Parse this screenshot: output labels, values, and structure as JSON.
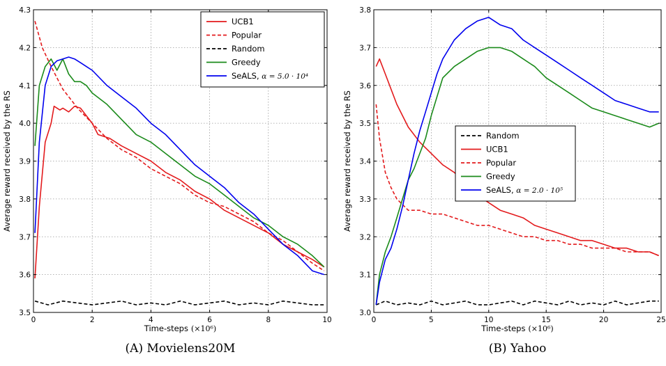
{
  "chart_data": [
    {
      "type": "line",
      "caption": "(A) Movielens20M",
      "xlabel": "Time-steps",
      "xlabel_unit": "(×10⁶)",
      "ylabel": "Average reward received by the RS",
      "xlim": [
        0,
        10
      ],
      "ylim": [
        3.5,
        4.3
      ],
      "xticks": [
        0,
        2,
        4,
        6,
        8,
        10
      ],
      "xtick_labels": [
        "0",
        "2",
        "4",
        "6",
        "8",
        "10"
      ],
      "yticks": [
        3.5,
        3.6,
        3.7,
        3.8,
        3.9,
        4.0,
        4.1,
        4.2,
        4.3
      ],
      "ytick_labels": [
        "3.5",
        "3.6",
        "3.7",
        "3.8",
        "3.9",
        "4.0",
        "4.1",
        "4.2",
        "4.3"
      ],
      "grid": true,
      "legend_position": "top-right",
      "legend_order": [
        0,
        1,
        2,
        3,
        4
      ],
      "series": [
        {
          "name": "UCB1",
          "color": "#e31a1c",
          "dash": "solid",
          "x": [
            0.05,
            0.2,
            0.4,
            0.6,
            0.7,
            0.9,
            1.0,
            1.2,
            1.4,
            1.6,
            1.8,
            2.0,
            2.2,
            2.6,
            3.0,
            3.5,
            4.0,
            4.5,
            5.0,
            5.5,
            6.0,
            6.5,
            7.0,
            7.5,
            8.0,
            8.5,
            9.0,
            9.5,
            9.9
          ],
          "y": [
            3.59,
            3.78,
            3.95,
            4.0,
            4.045,
            4.035,
            4.04,
            4.03,
            4.045,
            4.04,
            4.02,
            4.0,
            3.97,
            3.96,
            3.94,
            3.92,
            3.9,
            3.87,
            3.85,
            3.82,
            3.8,
            3.77,
            3.75,
            3.73,
            3.71,
            3.68,
            3.66,
            3.64,
            3.62
          ]
        },
        {
          "name": "Popular",
          "color": "#e31a1c",
          "dash": "dashed",
          "x": [
            0.05,
            0.3,
            0.6,
            1.0,
            1.5,
            2.0,
            2.5,
            3.0,
            3.5,
            4.0,
            4.5,
            5.0,
            5.5,
            6.0,
            6.5,
            7.0,
            7.5,
            8.0,
            8.5,
            9.0,
            9.5,
            9.9
          ],
          "y": [
            4.27,
            4.2,
            4.15,
            4.09,
            4.04,
            4.0,
            3.96,
            3.93,
            3.91,
            3.88,
            3.86,
            3.84,
            3.81,
            3.79,
            3.78,
            3.76,
            3.74,
            3.71,
            3.69,
            3.66,
            3.63,
            3.61
          ]
        },
        {
          "name": "Random",
          "color": "#000000",
          "dash": "dashed",
          "x": [
            0.05,
            0.5,
            1.0,
            1.5,
            2.0,
            2.5,
            3.0,
            3.5,
            4.0,
            4.5,
            5.0,
            5.5,
            6.0,
            6.5,
            7.0,
            7.5,
            8.0,
            8.5,
            9.0,
            9.5,
            9.9
          ],
          "y": [
            3.53,
            3.52,
            3.53,
            3.525,
            3.52,
            3.525,
            3.53,
            3.52,
            3.525,
            3.52,
            3.53,
            3.52,
            3.525,
            3.53,
            3.52,
            3.525,
            3.52,
            3.53,
            3.525,
            3.52,
            3.52
          ]
        },
        {
          "name": "Greedy",
          "color": "#1a8a1a",
          "dash": "solid",
          "x": [
            0.05,
            0.2,
            0.4,
            0.6,
            0.8,
            1.0,
            1.2,
            1.4,
            1.6,
            1.8,
            2.0,
            2.5,
            3.0,
            3.5,
            4.0,
            4.5,
            5.0,
            5.5,
            6.0,
            6.5,
            7.0,
            7.5,
            8.0,
            8.5,
            9.0,
            9.5,
            9.9
          ],
          "y": [
            3.94,
            4.1,
            4.15,
            4.17,
            4.14,
            4.17,
            4.13,
            4.11,
            4.11,
            4.1,
            4.08,
            4.05,
            4.01,
            3.97,
            3.95,
            3.92,
            3.89,
            3.86,
            3.84,
            3.81,
            3.78,
            3.75,
            3.73,
            3.7,
            3.68,
            3.65,
            3.62
          ]
        },
        {
          "name": "SeALS",
          "color": "#0000ee",
          "dash": "solid",
          "x": [
            0.05,
            0.2,
            0.4,
            0.6,
            0.8,
            1.0,
            1.2,
            1.4,
            1.6,
            1.8,
            2.0,
            2.5,
            3.0,
            3.5,
            4.0,
            4.5,
            5.0,
            5.5,
            6.0,
            6.5,
            7.0,
            7.5,
            8.0,
            8.5,
            9.0,
            9.5,
            9.9
          ],
          "y": [
            3.71,
            3.95,
            4.1,
            4.15,
            4.165,
            4.17,
            4.175,
            4.17,
            4.16,
            4.15,
            4.14,
            4.1,
            4.07,
            4.04,
            4.0,
            3.97,
            3.93,
            3.89,
            3.86,
            3.83,
            3.79,
            3.76,
            3.72,
            3.68,
            3.65,
            3.61,
            3.6
          ]
        }
      ]
    },
    {
      "type": "line",
      "caption": "(B) Yahoo",
      "xlabel": "Time-steps",
      "xlabel_unit": "(×10⁶)",
      "ylabel": "Average reward received by the RS",
      "xlim": [
        0,
        25
      ],
      "ylim": [
        3.0,
        3.8
      ],
      "xticks": [
        0,
        5,
        10,
        15,
        20,
        25
      ],
      "xtick_labels": [
        "0",
        "5",
        "10",
        "15",
        "20",
        "25"
      ],
      "yticks": [
        3.0,
        3.1,
        3.2,
        3.3,
        3.4,
        3.5,
        3.6,
        3.7,
        3.8
      ],
      "ytick_labels": [
        "3.0",
        "3.1",
        "3.2",
        "3.3",
        "3.4",
        "3.5",
        "3.6",
        "3.7",
        "3.8"
      ],
      "grid": true,
      "legend_position": "center-right",
      "legend_order": [
        2,
        0,
        1,
        3,
        4
      ],
      "series": [
        {
          "name": "UCB1",
          "color": "#e31a1c",
          "dash": "solid",
          "x": [
            0.2,
            0.5,
            1.0,
            2.0,
            3.0,
            4.0,
            5.0,
            6.0,
            7.0,
            8.0,
            9.0,
            10.0,
            11.0,
            12.0,
            13.0,
            14.0,
            15.0,
            16.0,
            17.0,
            18.0,
            19.0,
            20.0,
            21.0,
            22.0,
            23.0,
            24.0,
            24.8
          ],
          "y": [
            3.65,
            3.67,
            3.63,
            3.55,
            3.49,
            3.45,
            3.42,
            3.39,
            3.37,
            3.34,
            3.31,
            3.29,
            3.27,
            3.26,
            3.25,
            3.23,
            3.22,
            3.21,
            3.2,
            3.19,
            3.19,
            3.18,
            3.17,
            3.17,
            3.16,
            3.16,
            3.15
          ]
        },
        {
          "name": "Popular",
          "color": "#e31a1c",
          "dash": "dashed",
          "x": [
            0.2,
            0.5,
            1.0,
            1.5,
            2.0,
            3.0,
            4.0,
            5.0,
            6.0,
            7.0,
            8.0,
            9.0,
            10.0,
            11.0,
            12.0,
            13.0,
            14.0,
            15.0,
            16.0,
            17.0,
            18.0,
            19.0,
            20.0,
            21.0,
            22.0,
            23.0,
            24.0,
            24.8
          ],
          "y": [
            3.55,
            3.46,
            3.37,
            3.33,
            3.3,
            3.27,
            3.27,
            3.26,
            3.26,
            3.25,
            3.24,
            3.23,
            3.23,
            3.22,
            3.21,
            3.2,
            3.2,
            3.19,
            3.19,
            3.18,
            3.18,
            3.17,
            3.17,
            3.17,
            3.16,
            3.16,
            3.16,
            3.15
          ]
        },
        {
          "name": "Random",
          "color": "#000000",
          "dash": "dashed",
          "x": [
            0.2,
            1.0,
            2.0,
            3.0,
            4.0,
            5.0,
            6.0,
            7.0,
            8.0,
            9.0,
            10.0,
            11.0,
            12.0,
            13.0,
            14.0,
            15.0,
            16.0,
            17.0,
            18.0,
            19.0,
            20.0,
            21.0,
            22.0,
            23.0,
            24.0,
            24.8
          ],
          "y": [
            3.02,
            3.03,
            3.02,
            3.025,
            3.02,
            3.03,
            3.02,
            3.025,
            3.03,
            3.02,
            3.02,
            3.025,
            3.03,
            3.02,
            3.03,
            3.025,
            3.02,
            3.03,
            3.02,
            3.025,
            3.02,
            3.03,
            3.02,
            3.025,
            3.03,
            3.03
          ]
        },
        {
          "name": "Greedy",
          "color": "#1a8a1a",
          "dash": "solid",
          "x": [
            0.2,
            0.5,
            1.0,
            1.5,
            2.0,
            2.5,
            3.0,
            3.5,
            4.0,
            4.5,
            5.0,
            5.5,
            6.0,
            7.0,
            8.0,
            9.0,
            10.0,
            11.0,
            12.0,
            13.0,
            14.0,
            15.0,
            16.0,
            17.0,
            18.0,
            19.0,
            20.0,
            21.0,
            22.0,
            23.0,
            24.0,
            24.8
          ],
          "y": [
            3.02,
            3.1,
            3.16,
            3.2,
            3.25,
            3.3,
            3.35,
            3.38,
            3.42,
            3.46,
            3.52,
            3.57,
            3.62,
            3.65,
            3.67,
            3.69,
            3.7,
            3.7,
            3.69,
            3.67,
            3.65,
            3.62,
            3.6,
            3.58,
            3.56,
            3.54,
            3.53,
            3.52,
            3.51,
            3.5,
            3.49,
            3.5
          ]
        },
        {
          "name": "SeALS",
          "color": "#0000ee",
          "dash": "solid",
          "x": [
            0.2,
            0.5,
            1.0,
            1.5,
            2.0,
            2.5,
            3.0,
            3.5,
            4.0,
            4.5,
            5.0,
            5.5,
            6.0,
            7.0,
            8.0,
            9.0,
            10.0,
            11.0,
            12.0,
            13.0,
            14.0,
            15.0,
            16.0,
            17.0,
            18.0,
            19.0,
            20.0,
            21.0,
            22.0,
            23.0,
            24.0,
            24.8
          ],
          "y": [
            3.02,
            3.08,
            3.14,
            3.17,
            3.22,
            3.28,
            3.35,
            3.42,
            3.48,
            3.53,
            3.58,
            3.63,
            3.67,
            3.72,
            3.75,
            3.77,
            3.78,
            3.76,
            3.75,
            3.72,
            3.7,
            3.68,
            3.66,
            3.64,
            3.62,
            3.6,
            3.58,
            3.56,
            3.55,
            3.54,
            3.53,
            3.53
          ]
        }
      ],
      "legend_params": "α = 2.0 · 10⁵"
    }
  ],
  "legend_params_a": "α = 5.0 · 10⁴"
}
